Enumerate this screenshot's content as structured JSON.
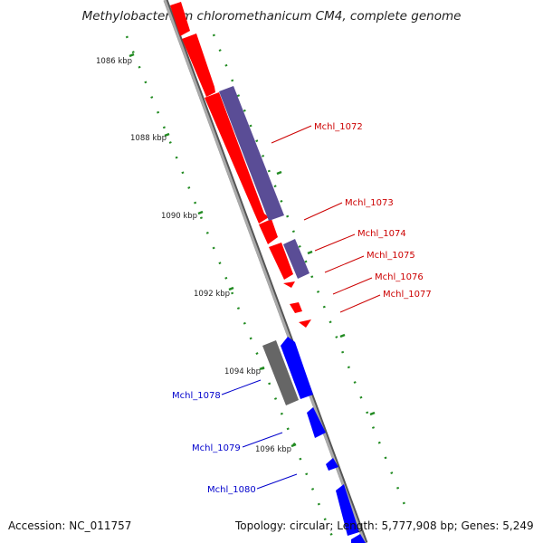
{
  "title": "Methylobacterium chloromethanicum CM4, complete genome",
  "accession": "Accession: NC_011757",
  "topology": "Topology: circular; Length: 5,777,908 bp; Genes: 5,249",
  "colors": {
    "forward_gene": "#ff0000",
    "reverse_gene": "#0000ff",
    "feature_purple": "#5a4d96",
    "feature_gray": "#666666",
    "tick": "#228b22",
    "backbone": "#999999"
  },
  "ticks": [
    "1086 kbp",
    "1088 kbp",
    "1090 kbp",
    "1092 kbp",
    "1094 kbp",
    "1096 kbp"
  ],
  "genes": [
    {
      "name": "Mchl_1072",
      "color": "#cc0000"
    },
    {
      "name": "Mchl_1073",
      "color": "#cc0000"
    },
    {
      "name": "Mchl_1074",
      "color": "#cc0000"
    },
    {
      "name": "Mchl_1075",
      "color": "#cc0000"
    },
    {
      "name": "Mchl_1076",
      "color": "#cc0000"
    },
    {
      "name": "Mchl_1077",
      "color": "#cc0000"
    },
    {
      "name": "Mchl_1078",
      "color": "#0000cc"
    },
    {
      "name": "Mchl_1079",
      "color": "#0000cc"
    },
    {
      "name": "Mchl_1080",
      "color": "#0000cc"
    }
  ]
}
